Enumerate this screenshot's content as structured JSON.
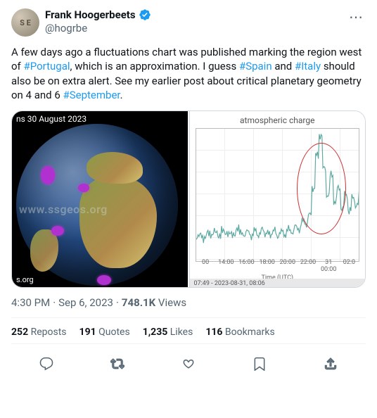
{
  "user": {
    "avatar_initials": "S E",
    "display_name": "Frank Hoogerbeets",
    "handle": "@hogrbe",
    "verified": true,
    "verified_color": "#1d9bf0"
  },
  "tweet": {
    "segments": [
      {
        "t": "A few days ago a fluctuations chart was published marking the region west of ",
        "h": false
      },
      {
        "t": "#Portugal",
        "h": true
      },
      {
        "t": ", which is an approximation. I guess ",
        "h": false
      },
      {
        "t": "#Spain",
        "h": true
      },
      {
        "t": " and ",
        "h": false
      },
      {
        "t": "#Italy",
        "h": true
      },
      {
        "t": " should also be on extra alert. See my earlier post about critical planetary geometry on 4 and 6 ",
        "h": false
      },
      {
        "t": "#September",
        "h": true
      },
      {
        "t": ".",
        "h": false
      }
    ]
  },
  "media": {
    "globe": {
      "top_label": "ns 30 August 2023",
      "watermark": "www.ssgeos.org",
      "bottom_label": "s.org",
      "ocean_color": "#1a3a66",
      "land_color": "#8a9a4a",
      "marker_color": "#b030d0"
    },
    "chart": {
      "title": "atmospheric charge",
      "type": "line",
      "xlabel": "Time (UTC)",
      "xticks": [
        "00",
        "14:00",
        "16:00",
        "18:00",
        "20:00",
        "22:00",
        "31 00:00",
        "02:0"
      ],
      "footer": "07:49 - 2023-08-31, 08:06",
      "line_color": "#5aa8a0",
      "background_color": "#ffffff",
      "grid_color": "#eeeeee",
      "highlight_circle_color": "#cc3030",
      "ylim": [
        0,
        100
      ],
      "series_y": [
        18,
        20,
        17,
        22,
        19,
        23,
        18,
        24,
        20,
        22,
        19,
        25,
        21,
        20,
        22,
        19,
        23,
        20,
        24,
        21,
        20,
        23,
        19,
        22,
        20,
        24,
        22,
        26,
        24,
        30,
        28,
        35,
        55,
        80,
        95,
        70,
        50,
        65,
        45,
        55,
        40,
        50,
        38,
        48,
        42,
        52
      ]
    }
  },
  "meta": {
    "time": "4:30 PM",
    "date": "Sep 6, 2023",
    "views_count": "748.1K",
    "views_label": "Views"
  },
  "stats": {
    "reposts_count": "252",
    "reposts_label": "Reposts",
    "quotes_count": "191",
    "quotes_label": "Quotes",
    "likes_count": "1,235",
    "likes_label": "Likes",
    "bookmarks_count": "116",
    "bookmarks_label": "Bookmarks"
  },
  "colors": {
    "link": "#1d9bf0",
    "text": "#0f1419",
    "muted": "#536471"
  }
}
